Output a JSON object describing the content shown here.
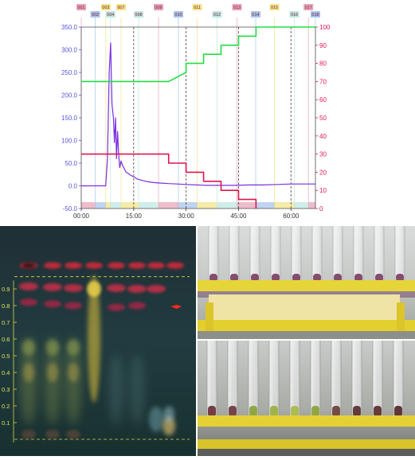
{
  "chart_header": "",
  "fraction_markers": [
    {
      "label": "001",
      "color": "#e8a5b8",
      "ratio": 0.0
    },
    {
      "label": "002",
      "color": "#a8c6ec",
      "ratio": 0.06
    },
    {
      "label": "003",
      "color": "#f3e48b",
      "ratio": 0.105
    },
    {
      "label": "004",
      "color": "#bfe8e2",
      "ratio": 0.125
    },
    {
      "label": "007",
      "color": "#f3e48b",
      "ratio": 0.17
    },
    {
      "label": "008",
      "color": "#bfe8e2",
      "ratio": 0.245
    },
    {
      "label": "009",
      "color": "#e8a5b8",
      "ratio": 0.33
    },
    {
      "label": "010",
      "color": "#a8c6ec",
      "ratio": 0.415
    },
    {
      "label": "011",
      "color": "#f3e48b",
      "ratio": 0.495
    },
    {
      "label": "012",
      "color": "#bfe8e2",
      "ratio": 0.58
    },
    {
      "label": "013",
      "color": "#e8a5b8",
      "ratio": 0.665
    },
    {
      "label": "014",
      "color": "#a8c6ec",
      "ratio": 0.745
    },
    {
      "label": "015",
      "color": "#f3e48b",
      "ratio": 0.825
    },
    {
      "label": "016",
      "color": "#bfe8e2",
      "ratio": 0.91
    },
    {
      "label": "017",
      "color": "#e8a5b8",
      "ratio": 0.97
    },
    {
      "label": "018",
      "color": "#a8c6ec",
      "ratio": 1.0
    }
  ],
  "chart_data": {
    "type": "line",
    "title": "",
    "xlabel": "",
    "ylabel_left": "",
    "ylabel_right": "",
    "xlim": [
      0,
      67
    ],
    "ylim_left": [
      -50,
      350
    ],
    "ylim_right": [
      0,
      100
    ],
    "x_ticks": [
      "00:00",
      "15:00",
      "30:00",
      "45:00",
      "60:00"
    ],
    "x_tick_values": [
      0,
      15,
      30,
      45,
      60
    ],
    "y_left_ticks": [
      -50.0,
      0.0,
      50.0,
      100.0,
      150.0,
      200.0,
      250.0,
      300.0,
      350.0
    ],
    "y_right_ticks": [
      0,
      10,
      20,
      30,
      40,
      50,
      60,
      70,
      80,
      90,
      100
    ],
    "grid": false,
    "colors": {
      "absorbance": "#7a2ee0",
      "gradient": "#22dd44",
      "strength": "#e0144c",
      "axis_left": "#5555dd",
      "axis_right": "#e0145c",
      "dashed_divider": "#444444"
    },
    "series": [
      {
        "axis": "left",
        "color": "#7a2ee0",
        "x": [
          0,
          7.0,
          7.5,
          8.0,
          8.4,
          8.8,
          9.2,
          9.5,
          9.8,
          10.1,
          10.4,
          10.7,
          11.0,
          11.4,
          11.8,
          12.3,
          12.8,
          13.3,
          14.0,
          15.0,
          16.0,
          17.5,
          19.0,
          21.0,
          23.0,
          25.0,
          27.5,
          30.0,
          33.0,
          36.0,
          40.0,
          44.0,
          48.0,
          52.0,
          56.0,
          60.0,
          64.0,
          67.0
        ],
        "y": [
          0,
          0,
          60,
          250,
          315,
          180,
          150,
          95,
          150,
          60,
          120,
          70,
          40,
          55,
          45,
          38,
          30,
          28,
          24,
          20,
          15,
          12,
          9,
          7,
          6,
          5,
          4,
          3,
          2,
          1,
          1,
          1,
          2,
          2,
          3,
          4,
          4,
          4
        ]
      },
      {
        "axis": "right",
        "color": "#22dd44",
        "x": [
          0,
          25,
          30,
          30,
          35,
          35,
          40,
          40,
          45,
          45,
          50,
          50,
          55,
          55,
          67
        ],
        "y": [
          70,
          70,
          75,
          80,
          80,
          85,
          85,
          90,
          90,
          95,
          95,
          100,
          100,
          100,
          100
        ]
      },
      {
        "axis": "right",
        "color": "#e0144c",
        "x": [
          0,
          25,
          25,
          30,
          30,
          35,
          35,
          40,
          40,
          45,
          45,
          50,
          50
        ],
        "y": [
          30,
          30,
          25,
          25,
          20,
          20,
          15,
          15,
          10,
          10,
          5,
          5,
          0
        ]
      }
    ],
    "dashed_dividers_x": [
      15,
      30,
      45,
      60
    ]
  },
  "tlc_plate": {
    "rf_labels": [
      "0.9",
      "0.8",
      "0.7",
      "0.6",
      "0.5",
      "0.4",
      "0.3",
      "0.2",
      "0.1"
    ],
    "rf_values": [
      0.9,
      0.8,
      0.7,
      0.6,
      0.5,
      0.4,
      0.3,
      0.2,
      0.1
    ],
    "marker_color": "#ff2a1a",
    "lane_count": 8
  },
  "photos": {
    "top": {
      "description_icon": "tube-rack-purple-fractions-photo"
    },
    "bottom": {
      "description_icon": "tube-rack-mixed-fractions-photo"
    }
  }
}
